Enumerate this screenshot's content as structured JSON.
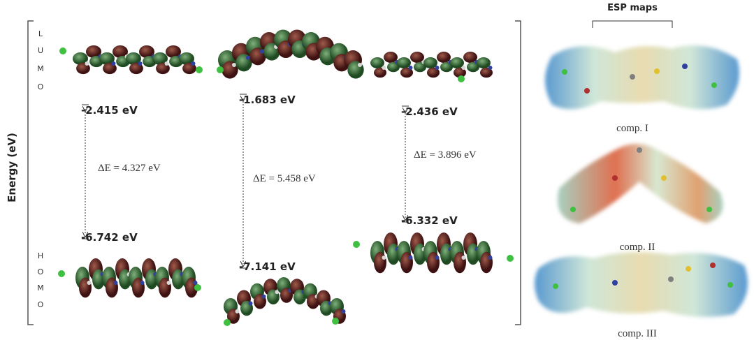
{
  "axis_label": "Energy (eV)",
  "lumo_letters": [
    "L",
    "U",
    "M",
    "O"
  ],
  "homo_letters": [
    "H",
    "O",
    "M",
    "O"
  ],
  "compounds": [
    {
      "lumo": "-2.415 eV",
      "gap": "ΔE = 4.327 eV",
      "homo": "-6.742 eV"
    },
    {
      "lumo": "-1.683 eV",
      "gap": "ΔE = 5.458 eV",
      "homo": "-7.141 eV"
    },
    {
      "lumo": "-2.436 eV",
      "gap": "ΔE = 3.896 eV",
      "homo": "-6.332 eV"
    }
  ],
  "esp": {
    "title": "ESP maps",
    "labels": [
      "comp. I",
      "comp. II",
      "comp. III"
    ]
  }
}
